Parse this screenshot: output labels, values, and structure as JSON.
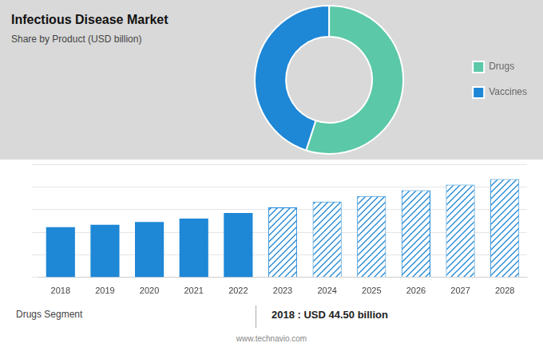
{
  "chart_data": [
    {
      "type": "doughnut",
      "title": "Infectious Disease Market",
      "subtitle": "Share by Product (USD billion)",
      "categories": [
        "Drugs",
        "Vaccines"
      ],
      "values": [
        55,
        45
      ],
      "colors": [
        "#5bc8a8",
        "#1e87d6"
      ],
      "legend": "right"
    },
    {
      "type": "bar",
      "categories": [
        "2018",
        "2019",
        "2020",
        "2021",
        "2022",
        "2023",
        "2024",
        "2025",
        "2026",
        "2027",
        "2028"
      ],
      "series": [
        {
          "color": "#1e87d6",
          "values": [
            44.5,
            46.5,
            49.0,
            52.0,
            57.0,
            null,
            null,
            null,
            null,
            null,
            null
          ]
        },
        {
          "color": "#1e87d6",
          "line_style": "hatched",
          "values": [
            null,
            null,
            null,
            null,
            null,
            62.0,
            67.0,
            72.0,
            77.0,
            82.0,
            87.0
          ]
        }
      ],
      "ylim": [
        0,
        100
      ],
      "yticks": [
        0,
        20,
        40,
        60,
        80,
        100
      ],
      "grid": true,
      "tick_labels": "x",
      "annotations": [
        "Drugs Segment",
        "2018 : USD 44.50 billion",
        "www.technavio.com"
      ]
    }
  ]
}
